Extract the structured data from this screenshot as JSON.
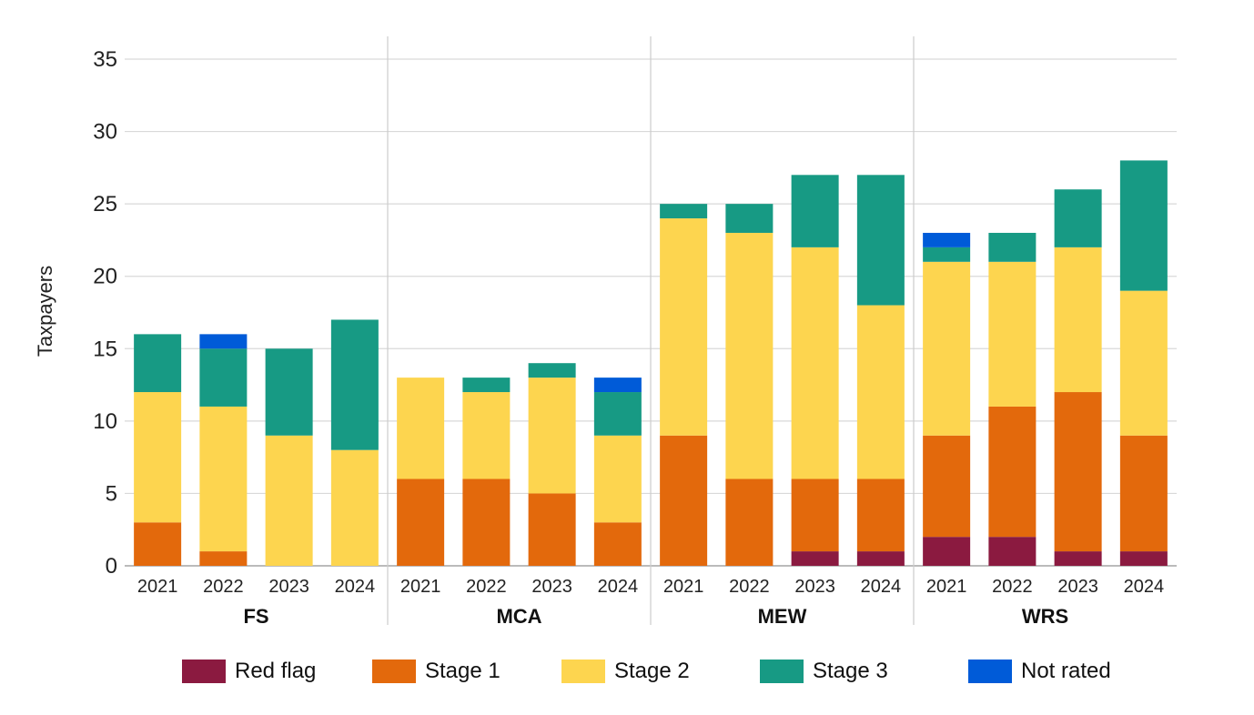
{
  "chart_data": {
    "type": "bar",
    "stacked": true,
    "title": "",
    "xlabel": "",
    "ylabel": "Taxpayers",
    "ylim": [
      0,
      35
    ],
    "yticks": [
      0,
      5,
      10,
      15,
      20,
      25,
      30,
      35
    ],
    "grid": true,
    "legend_position": "bottom",
    "groups": [
      "FS",
      "MCA",
      "MEW",
      "WRS"
    ],
    "categories": [
      "2021",
      "2022",
      "2023",
      "2024"
    ],
    "series": [
      {
        "name": "Red flag",
        "color": "#8B1A40",
        "values": [
          [
            0,
            0,
            0,
            0
          ],
          [
            0,
            0,
            0,
            0
          ],
          [
            0,
            0,
            1,
            1
          ],
          [
            2,
            2,
            1,
            1
          ]
        ]
      },
      {
        "name": "Stage 1",
        "color": "#E3690C",
        "values": [
          [
            3,
            1,
            0,
            0
          ],
          [
            6,
            6,
            5,
            3
          ],
          [
            9,
            6,
            5,
            5
          ],
          [
            7,
            9,
            11,
            8
          ]
        ]
      },
      {
        "name": "Stage 2",
        "color": "#FDD54F",
        "values": [
          [
            9,
            10,
            9,
            8
          ],
          [
            7,
            6,
            8,
            6
          ],
          [
            15,
            17,
            16,
            12
          ],
          [
            12,
            10,
            10,
            10
          ]
        ]
      },
      {
        "name": "Stage 3",
        "color": "#179A84",
        "values": [
          [
            4,
            4,
            6,
            9
          ],
          [
            0,
            1,
            1,
            3
          ],
          [
            1,
            2,
            5,
            9
          ],
          [
            1,
            2,
            4,
            9
          ]
        ]
      },
      {
        "name": "Not rated",
        "color": "#005BD8",
        "values": [
          [
            0,
            1,
            0,
            0
          ],
          [
            0,
            0,
            0,
            1
          ],
          [
            0,
            0,
            0,
            0
          ],
          [
            1,
            0,
            0,
            0
          ]
        ]
      }
    ]
  }
}
